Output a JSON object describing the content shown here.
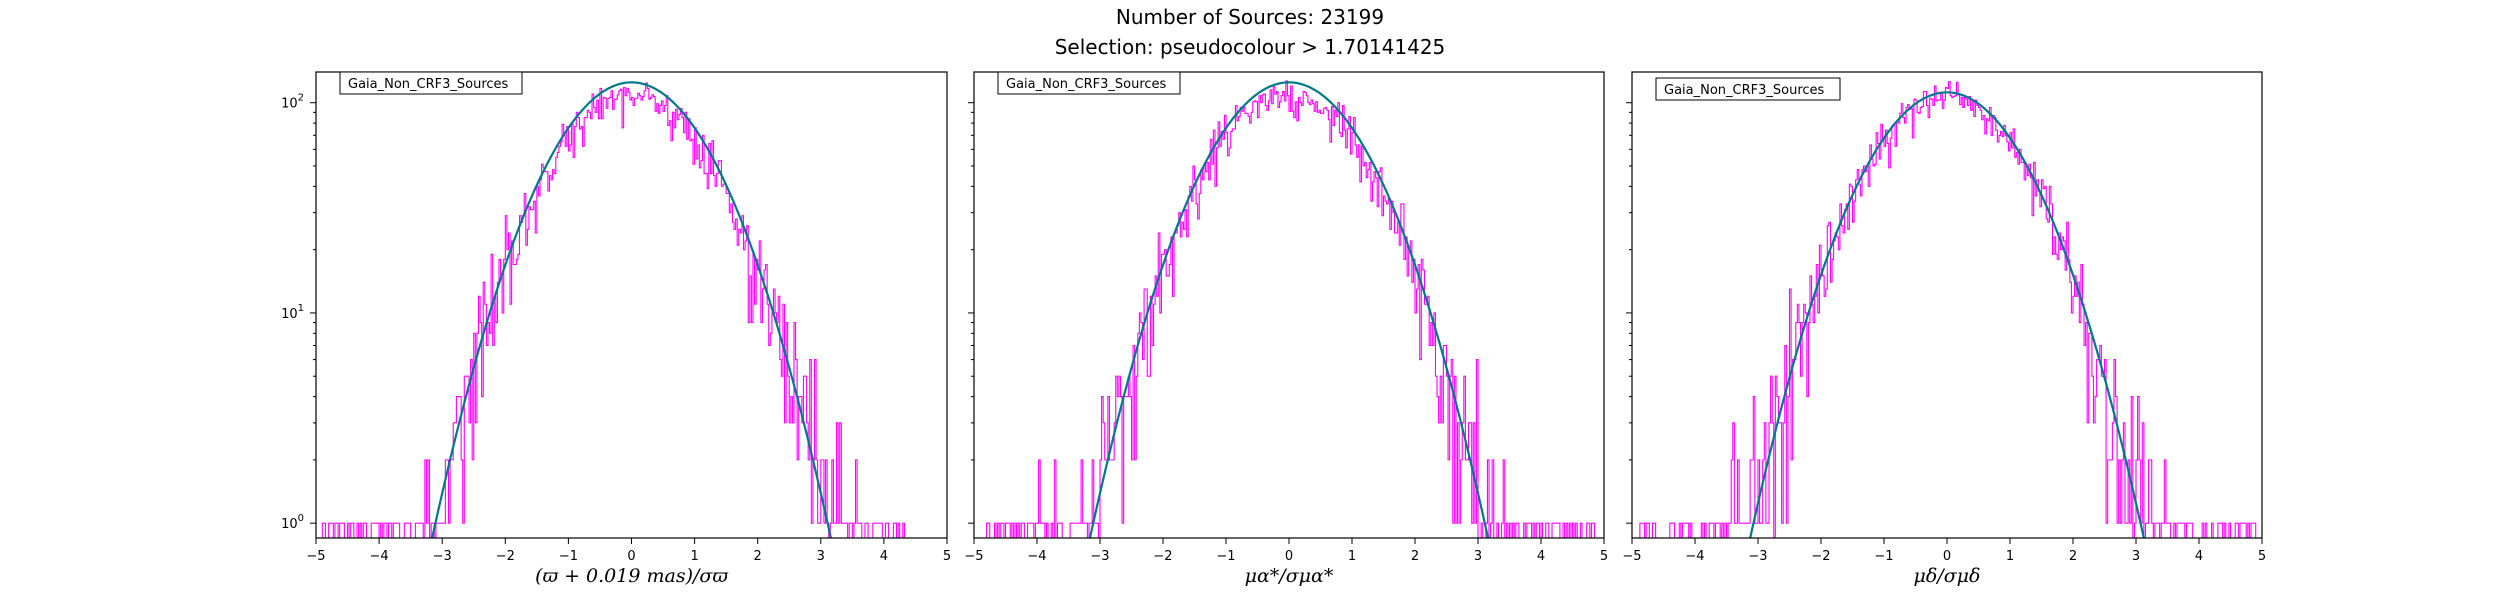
{
  "header": {
    "line1": "Number of Sources: 23199",
    "line2": "Selection: pseudocolour > 1.70141425"
  },
  "colors": {
    "histogram": "#ff00ff",
    "fit_curve": "#007a8a",
    "axes": "#000000",
    "legend_edge": "#000000"
  },
  "chart_data": [
    {
      "type": "histogram",
      "legend": "Gaia_Non_CRF3_Sources",
      "legend_position": "upper-left",
      "xlabel": "(ϖ + 0.019 mas)/σϖ",
      "xlim": [
        -5,
        5
      ],
      "ylim": [
        0.85,
        140
      ],
      "yscale": "log",
      "x_ticks": [
        "−5",
        "−4",
        "−3",
        "−2",
        "−1",
        "0",
        "1",
        "2",
        "3",
        "4",
        "5"
      ],
      "y_ticks": [
        {
          "value": 1,
          "base": "10",
          "exp": "0"
        },
        {
          "value": 10,
          "base": "10",
          "exp": "1"
        },
        {
          "value": 100,
          "base": "10",
          "exp": "2"
        }
      ],
      "fit": {
        "model": "gaussian",
        "peak": 125,
        "mean": 0.0,
        "sigma": 1.0
      },
      "hist": {
        "bin_width": 0.025,
        "x_min": -4.9,
        "x_max": 4.4,
        "peak": 110,
        "sigma": 1.02,
        "seed": 11
      }
    },
    {
      "type": "histogram",
      "legend": "Gaia_Non_CRF3_Sources",
      "legend_position": "upper-left",
      "xlabel": "μα*/σμα*",
      "xlim": [
        -5,
        5
      ],
      "ylim": [
        0.85,
        140
      ],
      "yscale": "log",
      "x_ticks": [
        "−5",
        "−4",
        "−3",
        "−2",
        "−1",
        "0",
        "1",
        "2",
        "3",
        "4",
        "5"
      ],
      "y_ticks": [
        {
          "value": 1,
          "base": "10",
          "exp": "0"
        },
        {
          "value": 10,
          "base": "10",
          "exp": "1"
        },
        {
          "value": 100,
          "base": "10",
          "exp": "2"
        }
      ],
      "fit": {
        "model": "gaussian",
        "peak": 125,
        "mean": 0.0,
        "sigma": 1.0
      },
      "hist": {
        "bin_width": 0.025,
        "x_min": -4.8,
        "x_max": 4.9,
        "peak": 110,
        "sigma": 1.02,
        "seed": 23
      }
    },
    {
      "type": "histogram",
      "legend": "Gaia_Non_CRF3_Sources",
      "legend_position": "upper-left",
      "xlabel": "μδ/σμδ",
      "xlim": [
        -5,
        5
      ],
      "ylim": [
        0.85,
        140
      ],
      "yscale": "log",
      "x_ticks": [
        "−5",
        "−4",
        "−3",
        "−2",
        "−1",
        "0",
        "1",
        "2",
        "3",
        "4",
        "5"
      ],
      "y_ticks": [
        {
          "value": 1,
          "base": "10",
          "exp": "0"
        },
        {
          "value": 10,
          "base": "10",
          "exp": "1"
        },
        {
          "value": 100,
          "base": "10",
          "exp": "2"
        }
      ],
      "fit": {
        "model": "gaussian",
        "peak": 112,
        "mean": 0.0,
        "sigma": 1.0
      },
      "hist": {
        "bin_width": 0.025,
        "x_min": -4.9,
        "x_max": 4.9,
        "peak": 105,
        "sigma": 1.02,
        "seed": 37
      }
    }
  ]
}
